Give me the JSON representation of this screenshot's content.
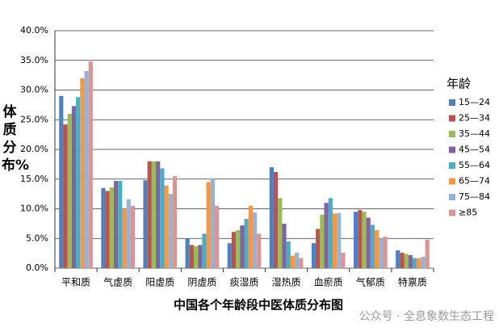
{
  "chart_data": {
    "type": "bar",
    "title": "中国各个年龄段中医体质分布图",
    "y_label": "体质分布%",
    "legend_title": "年龄",
    "watermark": "公众号 · 全息象数生态工程",
    "categories": [
      "平和质",
      "气虚质",
      "阳虚质",
      "阴虚质",
      "痰湿质",
      "湿热质",
      "血瘀质",
      "气郁质",
      "特禀质"
    ],
    "series": [
      {
        "name": "15—24",
        "color": "#4f81bd",
        "values": [
          29.0,
          13.5,
          14.8,
          5.0,
          4.2,
          17.0,
          4.2,
          9.5,
          3.0
        ]
      },
      {
        "name": "25—34",
        "color": "#c0504d",
        "values": [
          24.2,
          13.0,
          18.0,
          3.9,
          6.1,
          16.2,
          6.6,
          9.8,
          2.6
        ]
      },
      {
        "name": "35—44",
        "color": "#9bbb59",
        "values": [
          26.0,
          13.6,
          18.0,
          3.7,
          6.4,
          11.8,
          9.0,
          9.5,
          2.4
        ]
      },
      {
        "name": "45—54",
        "color": "#8064a2",
        "values": [
          27.3,
          14.7,
          18.0,
          3.9,
          7.2,
          7.5,
          11.0,
          8.5,
          2.2
        ]
      },
      {
        "name": "55—64",
        "color": "#4bacc6",
        "values": [
          28.8,
          14.7,
          16.8,
          5.8,
          8.3,
          4.5,
          11.8,
          7.3,
          1.7
        ]
      },
      {
        "name": "65—74",
        "color": "#f79646",
        "values": [
          32.0,
          10.0,
          13.9,
          14.5,
          10.5,
          2.1,
          9.2,
          6.4,
          1.7
        ]
      },
      {
        "name": "75—84",
        "color": "#95b3d7",
        "values": [
          33.2,
          11.6,
          12.5,
          15.0,
          9.4,
          2.6,
          9.3,
          5.0,
          1.9
        ]
      },
      {
        "name": "≥85",
        "color": "#da9694",
        "values": [
          34.8,
          10.5,
          15.5,
          10.5,
          5.8,
          1.7,
          2.6,
          5.3,
          4.8
        ]
      }
    ],
    "ylim": [
      0,
      40
    ],
    "yticks": [
      {
        "value": 0,
        "label": "0.0%"
      },
      {
        "value": 5,
        "label": "5.0%"
      },
      {
        "value": 10,
        "label": "10.0%"
      },
      {
        "value": 15,
        "label": "15.0%"
      },
      {
        "value": 20,
        "label": "20.0%"
      },
      {
        "value": 25,
        "label": "25.0%"
      },
      {
        "value": 30,
        "label": "30.0%"
      },
      {
        "value": 35,
        "label": "35.0%"
      },
      {
        "value": 40,
        "label": "40.0%"
      }
    ],
    "grid": true,
    "legend_position": "right"
  }
}
